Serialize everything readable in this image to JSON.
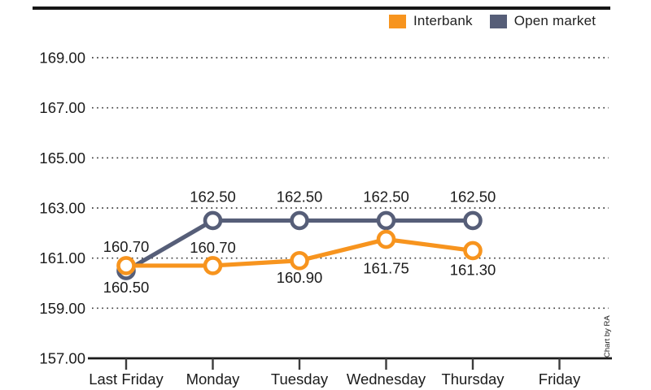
{
  "chart_data": {
    "type": "line",
    "title": "",
    "categories": [
      "Last Friday",
      "Monday",
      "Tuesday",
      "Wednesday",
      "Thursday",
      "Friday"
    ],
    "y_tick_labels": [
      "169.00",
      "167.00",
      "165.00",
      "163.00",
      "161.00",
      "159.00",
      "157.00"
    ],
    "y_tick_values": [
      169,
      167,
      165,
      163,
      161,
      159,
      157
    ],
    "ylim": [
      157,
      169
    ],
    "grid": "dotted-horizontal",
    "legend_position": "top-right",
    "series": [
      {
        "name": "Open market",
        "color": "#565E78",
        "values": [
          160.5,
          162.5,
          162.5,
          162.5,
          162.5,
          null
        ],
        "point_labels": [
          "160.50",
          "162.50",
          "162.50",
          "162.50",
          "162.50"
        ],
        "label_offsets_y": [
          27,
          -23,
          -23,
          -23,
          -23
        ]
      },
      {
        "name": "Interbank",
        "color": "#F7941E",
        "values": [
          160.7,
          160.7,
          160.9,
          161.75,
          161.3,
          null
        ],
        "point_labels": [
          "160.70",
          "160.70",
          "160.90",
          "161.75",
          "161.30"
        ],
        "label_offsets_y": [
          -17,
          -16,
          27,
          42,
          30
        ]
      }
    ],
    "credit": "Chart by RA"
  },
  "legend": {
    "items": [
      {
        "label": "Interbank",
        "color": "#F7941E"
      },
      {
        "label": "Open market",
        "color": "#565E78"
      }
    ]
  },
  "colors": {
    "interbank": "#F7941E",
    "open_market": "#565E78",
    "grid_dots": "#3c3c3c",
    "axis": "#1a1a1a",
    "background": "#ffffff"
  }
}
